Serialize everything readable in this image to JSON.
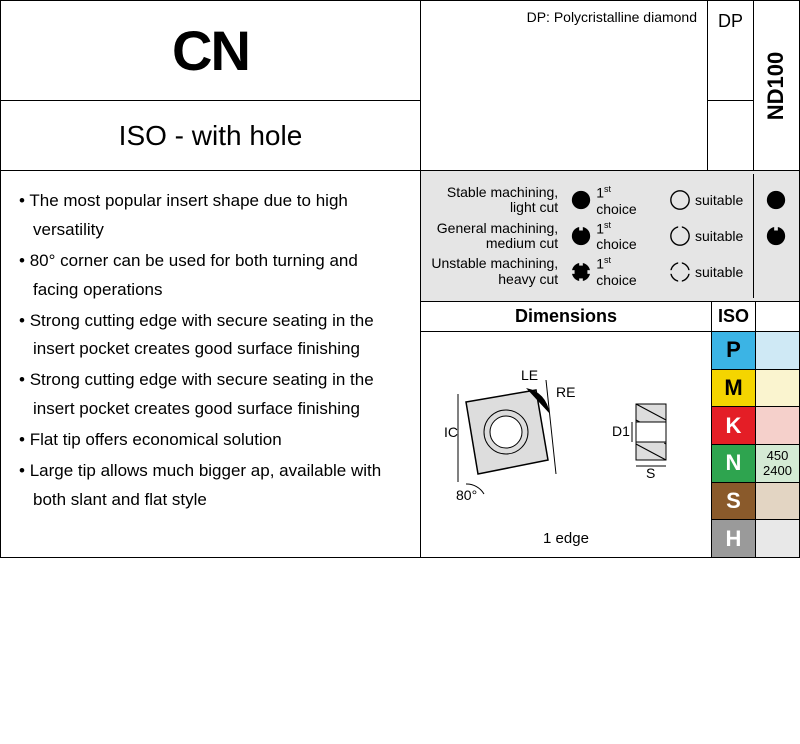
{
  "title": "CN",
  "subtitle": "ISO - with hole",
  "dp_label": "DP: Polycristalline diamond",
  "dp_code": "DP",
  "nd_code": "ND100",
  "bullets": [
    "The most popular insert shape due to high versatility",
    "80° corner can be used for both turning and facing operations",
    "Strong cutting edge with secure seating in the insert pocket creates good surface finishing",
    "Strong cutting edge with secure seating in the insert pocket creates good surface finishing",
    "Flat tip offers economical solution",
    "Large tip allows much bigger ap, available with both slant and flat style"
  ],
  "legend": {
    "rows": [
      {
        "text": "Stable machining, light cut",
        "icon1": "filled",
        "icon2": "empty",
        "ind": "filled"
      },
      {
        "text": "General machining, medium cut",
        "icon1": "notch1",
        "icon2": "notch1o",
        "ind": "notch1"
      },
      {
        "text": "Unstable machining, heavy cut",
        "icon1": "notch4",
        "icon2": "notch4o",
        "ind": ""
      }
    ],
    "label1": "1st choice",
    "label2": "suitable"
  },
  "dim_header": "Dimensions",
  "iso_header": "ISO",
  "diagram": {
    "labels": {
      "IC": "IC",
      "LE": "LE",
      "RE": "RE",
      "D1": "D1",
      "S": "S",
      "angle": "80°"
    },
    "edge_label": "1 edge"
  },
  "iso_codes": [
    {
      "code": "P",
      "bg": "#3bb4e5",
      "fg": "#000",
      "vbg": "#cfe9f5",
      "vals": []
    },
    {
      "code": "M",
      "bg": "#f4d500",
      "fg": "#000",
      "vbg": "#faf4cf",
      "vals": []
    },
    {
      "code": "K",
      "bg": "#e41e26",
      "fg": "#fff",
      "vbg": "#f5d0cb",
      "vals": []
    },
    {
      "code": "N",
      "bg": "#2ea44f",
      "fg": "#fff",
      "vbg": "#d4ead4",
      "vals": [
        "450",
        "2400"
      ]
    },
    {
      "code": "S",
      "bg": "#8a5a2b",
      "fg": "#fff",
      "vbg": "#e3d5c3",
      "vals": []
    },
    {
      "code": "H",
      "bg": "#9a9a9a",
      "fg": "#fff",
      "vbg": "#e8e8e8",
      "vals": []
    }
  ]
}
